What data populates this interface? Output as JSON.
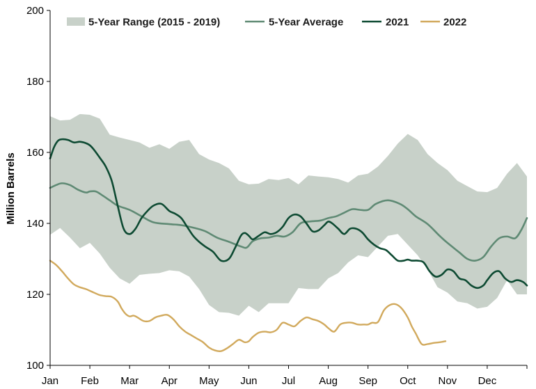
{
  "chart_data": {
    "type": "line",
    "title": "",
    "xlabel": "",
    "ylabel": "Million Barrels",
    "ylim": [
      100,
      200
    ],
    "yticks": [
      100,
      120,
      140,
      160,
      180,
      200
    ],
    "xticks": [
      "Jan",
      "Feb",
      "Mar",
      "Apr",
      "May",
      "Jun",
      "Jul",
      "Aug",
      "Sep",
      "Oct",
      "Nov",
      "Dec"
    ],
    "xlim": [
      0,
      12
    ],
    "grid": false,
    "legend_position": "top",
    "colors": {
      "range": "#c8d1c9",
      "avg": "#5f8a74",
      "y2021": "#0d4a32",
      "y2022": "#d1a95c"
    },
    "legend": [
      {
        "name": "5-Year Range (2015 - 2019)",
        "kind": "band",
        "color": "#c8d1c9"
      },
      {
        "name": "5-Year Average",
        "kind": "line",
        "color": "#5f8a74"
      },
      {
        "name": "2021",
        "kind": "line",
        "color": "#0d4a32"
      },
      {
        "name": "2022",
        "kind": "line",
        "color": "#d1a95c"
      }
    ],
    "range_band": {
      "x": [
        0.0,
        0.25,
        0.5,
        0.75,
        1.0,
        1.25,
        1.5,
        1.75,
        2.0,
        2.25,
        2.5,
        2.75,
        3.0,
        3.25,
        3.5,
        3.75,
        4.0,
        4.25,
        4.5,
        4.75,
        5.0,
        5.25,
        5.5,
        5.75,
        6.0,
        6.25,
        6.5,
        6.75,
        7.0,
        7.25,
        7.5,
        7.75,
        8.0,
        8.25,
        8.5,
        8.75,
        9.0,
        9.25,
        9.5,
        9.75,
        10.0,
        10.25,
        10.5,
        10.75,
        11.0,
        11.25,
        11.5,
        11.75,
        12.0
      ],
      "upper": [
        170.2,
        169.0,
        169.2,
        170.8,
        170.6,
        169.5,
        165.0,
        164.2,
        163.5,
        162.8,
        161.3,
        162.3,
        161.0,
        163.0,
        163.5,
        159.5,
        158.0,
        157.0,
        155.5,
        152.0,
        151.0,
        151.2,
        152.5,
        152.2,
        152.8,
        151.0,
        153.5,
        153.2,
        153.0,
        152.5,
        151.5,
        153.5,
        154.0,
        156.0,
        159.0,
        162.5,
        165.2,
        163.5,
        159.5,
        157.0,
        155.0,
        152.0,
        150.5,
        149.0,
        148.8,
        150.0,
        154.0,
        157.0,
        153.2
      ],
      "lower": [
        136.8,
        138.7,
        136.0,
        133.0,
        134.5,
        131.5,
        127.5,
        124.5,
        123.0,
        125.5,
        125.8,
        126.0,
        126.8,
        126.5,
        125.0,
        121.5,
        117.0,
        115.0,
        114.8,
        114.0,
        116.8,
        115.0,
        117.5,
        117.5,
        117.5,
        121.8,
        121.5,
        121.5,
        124.5,
        126.0,
        129.0,
        131.0,
        130.5,
        133.5,
        136.5,
        137.0,
        134.0,
        131.0,
        127.0,
        122.0,
        120.5,
        118.0,
        117.5,
        116.0,
        116.5,
        119.0,
        124.0,
        120.0,
        120.0
      ]
    },
    "series": [
      {
        "name": "5-Year Average",
        "x": [
          0.0,
          0.15,
          0.3,
          0.5,
          0.7,
          0.9,
          1.0,
          1.15,
          1.3,
          1.5,
          1.7,
          2.0,
          2.3,
          2.6,
          3.0,
          3.3,
          3.6,
          3.9,
          4.2,
          4.5,
          4.8,
          4.95,
          5.1,
          5.3,
          5.5,
          5.7,
          5.9,
          6.1,
          6.3,
          6.5,
          6.8,
          7.0,
          7.2,
          7.4,
          7.6,
          7.8,
          8.0,
          8.2,
          8.5,
          8.8,
          9.0,
          9.2,
          9.5,
          9.8,
          10.0,
          10.3,
          10.5,
          10.7,
          10.9,
          11.1,
          11.3,
          11.5,
          11.7,
          11.85,
          12.0
        ],
        "values": [
          150.0,
          150.8,
          151.3,
          150.8,
          149.5,
          148.7,
          149.0,
          149.0,
          148.0,
          146.5,
          145.0,
          143.8,
          142.0,
          140.3,
          139.8,
          139.5,
          138.8,
          137.8,
          136.0,
          134.8,
          133.5,
          133.2,
          135.0,
          135.8,
          136.0,
          136.5,
          136.3,
          137.5,
          140.0,
          140.5,
          140.8,
          141.5,
          142.0,
          143.0,
          144.0,
          143.8,
          143.8,
          145.5,
          146.5,
          145.5,
          144.0,
          142.0,
          139.8,
          136.5,
          134.5,
          131.8,
          130.0,
          129.5,
          130.5,
          133.5,
          135.8,
          136.3,
          135.8,
          138.0,
          141.5
        ]
      },
      {
        "name": "2021",
        "x": [
          0.0,
          0.1,
          0.2,
          0.3,
          0.45,
          0.6,
          0.75,
          0.9,
          1.0,
          1.1,
          1.25,
          1.4,
          1.55,
          1.7,
          1.85,
          2.0,
          2.15,
          2.3,
          2.45,
          2.6,
          2.8,
          3.0,
          3.15,
          3.3,
          3.45,
          3.6,
          3.75,
          3.9,
          4.1,
          4.3,
          4.5,
          4.65,
          4.8,
          4.9,
          5.0,
          5.1,
          5.25,
          5.4,
          5.55,
          5.7,
          5.85,
          6.0,
          6.15,
          6.3,
          6.45,
          6.6,
          6.75,
          6.9,
          7.0,
          7.1,
          7.25,
          7.4,
          7.55,
          7.7,
          7.85,
          8.0,
          8.15,
          8.3,
          8.45,
          8.6,
          8.75,
          8.9,
          9.0,
          9.1,
          9.25,
          9.4,
          9.55,
          9.7,
          9.85,
          10.0,
          10.15,
          10.3,
          10.45,
          10.6,
          10.75,
          10.9,
          11.0,
          11.15,
          11.3,
          11.45,
          11.6,
          11.75,
          11.9,
          12.0
        ],
        "values": [
          158.3,
          161.5,
          163.3,
          163.7,
          163.5,
          162.8,
          163.0,
          162.6,
          162.0,
          160.8,
          158.5,
          156.0,
          152.0,
          145.0,
          138.5,
          137.0,
          138.5,
          141.5,
          143.5,
          145.0,
          145.5,
          143.5,
          142.7,
          141.5,
          139.0,
          136.5,
          134.8,
          133.5,
          132.0,
          129.5,
          130.0,
          133.0,
          136.5,
          137.3,
          136.5,
          135.5,
          136.5,
          137.5,
          137.0,
          137.5,
          139.0,
          141.5,
          142.5,
          142.0,
          140.0,
          137.8,
          138.0,
          139.5,
          140.5,
          140.0,
          138.5,
          137.0,
          138.5,
          138.5,
          137.5,
          135.5,
          134.0,
          133.0,
          132.5,
          131.0,
          129.5,
          129.5,
          129.8,
          129.5,
          129.5,
          129.0,
          126.5,
          125.0,
          125.5,
          127.0,
          126.5,
          124.5,
          124.0,
          122.5,
          121.8,
          122.5,
          124.0,
          126.0,
          126.5,
          124.5,
          123.5,
          124.0,
          123.5,
          122.5
        ]
      },
      {
        "name": "2022",
        "x": [
          0.0,
          0.15,
          0.3,
          0.45,
          0.6,
          0.75,
          0.9,
          1.0,
          1.1,
          1.25,
          1.4,
          1.55,
          1.7,
          1.8,
          1.9,
          2.0,
          2.1,
          2.2,
          2.35,
          2.5,
          2.65,
          2.8,
          2.95,
          3.1,
          3.25,
          3.4,
          3.55,
          3.7,
          3.85,
          4.0,
          4.15,
          4.3,
          4.45,
          4.6,
          4.75,
          4.9,
          5.0,
          5.1,
          5.25,
          5.4,
          5.55,
          5.7,
          5.85,
          6.0,
          6.15,
          6.3,
          6.45,
          6.6,
          6.75,
          6.9,
          7.0,
          7.15,
          7.3,
          7.45,
          7.6,
          7.75,
          7.9,
          8.0,
          8.1,
          8.25,
          8.4,
          8.55,
          8.7,
          8.85,
          9.0,
          9.1,
          9.2,
          9.35,
          9.5,
          9.65,
          9.8,
          9.95
        ],
        "values": [
          129.5,
          128.3,
          126.5,
          124.5,
          122.8,
          122.0,
          121.5,
          121.0,
          120.5,
          119.8,
          119.5,
          119.3,
          118.0,
          116.0,
          114.5,
          113.8,
          114.0,
          113.5,
          112.5,
          112.5,
          113.5,
          114.0,
          114.2,
          113.0,
          111.0,
          109.5,
          108.5,
          107.5,
          106.5,
          105.0,
          104.2,
          104.0,
          104.8,
          106.0,
          107.2,
          106.5,
          106.8,
          108.0,
          109.2,
          109.5,
          109.3,
          110.0,
          112.0,
          111.5,
          111.0,
          112.5,
          113.5,
          113.0,
          112.5,
          111.5,
          110.5,
          109.5,
          111.5,
          112.0,
          112.0,
          111.5,
          111.5,
          111.5,
          112.0,
          112.2,
          115.5,
          117.0,
          117.2,
          116.0,
          113.5,
          111.0,
          109.0,
          106.0,
          106.0,
          106.3,
          106.5,
          106.8
        ]
      }
    ]
  }
}
